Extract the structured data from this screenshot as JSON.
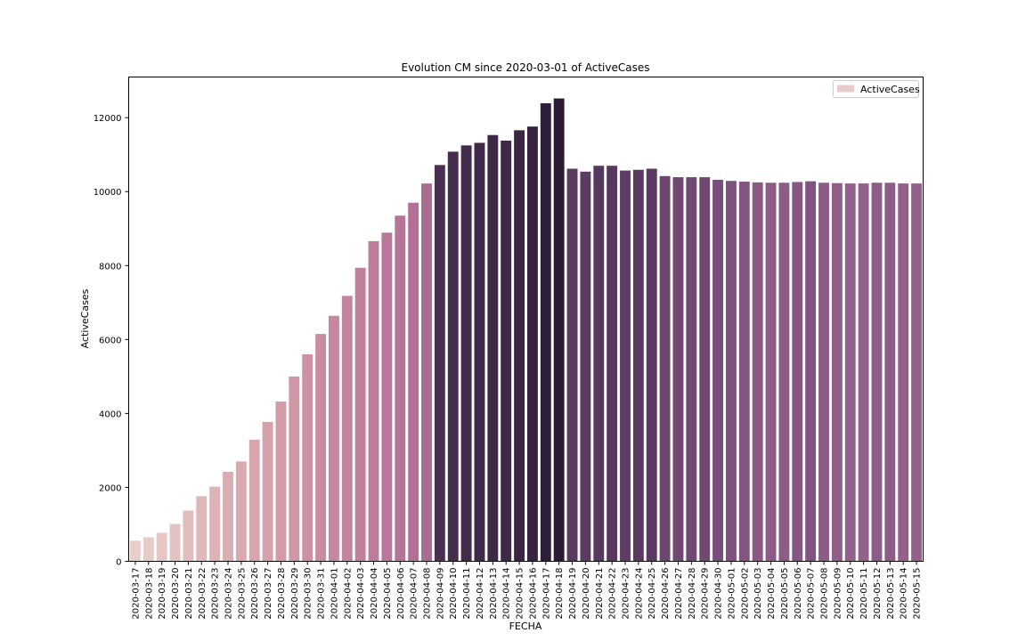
{
  "chart_data": {
    "type": "bar",
    "title": "Evolution CM since 2020-03-01 of ActiveCases",
    "xlabel": "FECHA",
    "ylabel": "ActiveCases",
    "ylim": [
      0,
      13100
    ],
    "yticks": [
      0,
      2000,
      4000,
      6000,
      8000,
      10000,
      12000
    ],
    "grid": false,
    "legend": {
      "placement": "top-right",
      "label": "ActiveCases",
      "color": "#e8cccc"
    },
    "categories": [
      "2020-03-17",
      "2020-03-18",
      "2020-03-19",
      "2020-03-20",
      "2020-03-21",
      "2020-03-22",
      "2020-03-23",
      "2020-03-24",
      "2020-03-25",
      "2020-03-26",
      "2020-03-27",
      "2020-03-28",
      "2020-03-29",
      "2020-03-30",
      "2020-03-31",
      "2020-04-01",
      "2020-04-02",
      "2020-04-03",
      "2020-04-04",
      "2020-04-05",
      "2020-04-06",
      "2020-04-07",
      "2020-04-08",
      "2020-04-09",
      "2020-04-10",
      "2020-04-11",
      "2020-04-12",
      "2020-04-13",
      "2020-04-14",
      "2020-04-15",
      "2020-04-16",
      "2020-04-17",
      "2020-04-18",
      "2020-04-19",
      "2020-04-20",
      "2020-04-21",
      "2020-04-22",
      "2020-04-23",
      "2020-04-24",
      "2020-04-25",
      "2020-04-26",
      "2020-04-27",
      "2020-04-28",
      "2020-04-29",
      "2020-04-30",
      "2020-05-01",
      "2020-05-02",
      "2020-05-03",
      "2020-05-04",
      "2020-05-05",
      "2020-05-06",
      "2020-05-07",
      "2020-05-08",
      "2020-05-09",
      "2020-05-10",
      "2020-05-11",
      "2020-05-12",
      "2020-05-13",
      "2020-05-14",
      "2020-05-15"
    ],
    "values": [
      560,
      650,
      770,
      1010,
      1370,
      1760,
      2020,
      2420,
      2700,
      3290,
      3770,
      4320,
      5000,
      5600,
      6150,
      6640,
      7180,
      7940,
      8660,
      8890,
      9350,
      9700,
      10220,
      10720,
      11080,
      11250,
      11320,
      11530,
      11380,
      11660,
      11760,
      12390,
      12520,
      10620,
      10540,
      10700,
      10700,
      10570,
      10590,
      10620,
      10420,
      10390,
      10390,
      10390,
      10320,
      10290,
      10270,
      10250,
      10240,
      10240,
      10260,
      10280,
      10240,
      10230,
      10220,
      10220,
      10240,
      10240,
      10220,
      10220
    ],
    "colors": [
      "#e9cfcb",
      "#e7cbc7",
      "#e5c6c4",
      "#e3c2c1",
      "#e1bdbd",
      "#dfb8b9",
      "#ddb3b6",
      "#dbaeb3",
      "#d9aab0",
      "#d7a5ad",
      "#d4a0aa",
      "#d29ba7",
      "#cf96a5",
      "#cc91a3",
      "#c98ca1",
      "#c6889f",
      "#c3849e",
      "#c0809c",
      "#bd7c9b",
      "#b97899",
      "#b67498",
      "#b27096",
      "#a66e91",
      "#4a3050",
      "#452d4d",
      "#432c4b",
      "#412a49",
      "#3c2745",
      "#3f2947",
      "#3a2543",
      "#372341",
      "#2f1e39",
      "#2b1b35",
      "#5a3a60",
      "#5c3b62",
      "#573860",
      "#58385f",
      "#5e3c64",
      "#5c3b62",
      "#5a3a61",
      "#6d4670",
      "#704872",
      "#704872",
      "#704872",
      "#7a4e7a",
      "#7f517e",
      "#855582",
      "#8a5985",
      "#8c5b87",
      "#8c5b87",
      "#875784",
      "#815480",
      "#8c5b87",
      "#905e89",
      "#94618c",
      "#94618c",
      "#8e5c88",
      "#8e5c88",
      "#94618c",
      "#94618c"
    ]
  }
}
